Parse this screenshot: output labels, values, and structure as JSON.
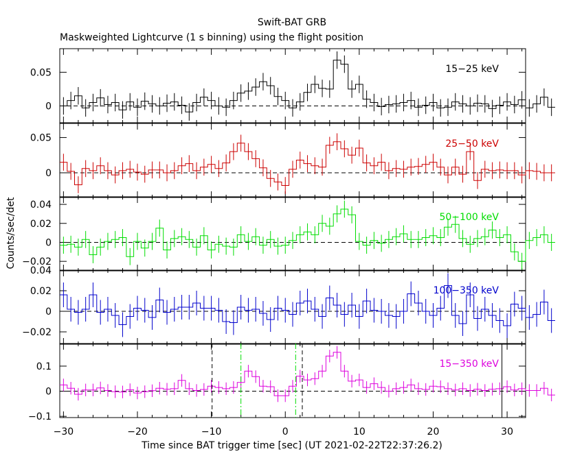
{
  "figure": {
    "title": "Swift-BAT GRB",
    "subtitle": "Maskweighted Lightcurve (1 s binning) using the flight position",
    "ylabel": "Counts/sec/det",
    "xlabel": "Time since BAT trigger time [sec] (UT 2021-02-22T22:37:26.2)",
    "x_ticks": [
      -30,
      -20,
      -10,
      0,
      10,
      20,
      30
    ]
  },
  "chart_data": [
    {
      "type": "line",
      "name": "15−25 keV",
      "color": "#000000",
      "xlim": [
        -30.5,
        32.5
      ],
      "ylim": [
        -0.025,
        0.085
      ],
      "yticks": [
        0,
        0.05
      ],
      "ytick_labels": [
        "0",
        "0.05"
      ],
      "step_start": -30,
      "step_width": 1,
      "values": [
        0.0,
        0.008,
        0.015,
        -0.003,
        0.005,
        0.012,
        0.002,
        0.005,
        -0.006,
        0.006,
        -0.002,
        0.007,
        0.003,
        0.0,
        0.004,
        0.006,
        0.001,
        -0.009,
        0.005,
        0.013,
        0.008,
        0.0,
        -0.002,
        0.008,
        0.019,
        0.022,
        0.028,
        0.036,
        0.03,
        0.014,
        0.008,
        -0.003,
        0.006,
        0.02,
        0.032,
        0.026,
        0.025,
        0.068,
        0.062,
        0.025,
        0.032,
        0.01,
        0.005,
        -0.001,
        0.002,
        0.003,
        0.005,
        0.008,
        -0.002,
        0.001,
        0.005,
        -0.003,
        -0.002,
        0.006,
        0.003,
        0.0,
        0.004,
        0.003,
        -0.004,
        0.001,
        0.006,
        0.002,
        0.009,
        -0.003,
        0.003,
        0.013,
        -0.002
      ],
      "errors": 0.013,
      "annotation": "15−25 keV",
      "vlines": [],
      "hlines": [
        0
      ]
    },
    {
      "type": "line",
      "name": "25−50 keV",
      "color": "#cc0000",
      "xlim": [
        -30.5,
        32.5
      ],
      "ylim": [
        -0.035,
        0.07
      ],
      "yticks": [
        0,
        0.05
      ],
      "ytick_labels": [
        "0",
        "0.05"
      ],
      "step_start": -30,
      "step_width": 1,
      "values": [
        0.015,
        0.002,
        -0.017,
        0.006,
        0.003,
        0.01,
        0.003,
        -0.003,
        0.003,
        0.005,
        0.001,
        -0.002,
        0.004,
        0.004,
        0.0,
        0.003,
        0.01,
        0.013,
        0.003,
        0.008,
        0.012,
        0.006,
        0.014,
        0.03,
        0.042,
        0.03,
        0.02,
        0.007,
        -0.008,
        -0.013,
        -0.018,
        0.005,
        0.018,
        0.013,
        0.01,
        0.008,
        0.039,
        0.044,
        0.034,
        0.025,
        0.035,
        0.014,
        0.01,
        0.015,
        0.003,
        0.006,
        0.005,
        0.008,
        0.009,
        0.012,
        0.015,
        0.008,
        -0.003,
        0.008,
        -0.002,
        0.03,
        -0.011,
        0.005,
        0.003,
        0.004,
        0.003,
        0.003,
        -0.003,
        0.003,
        0.002,
        0.0,
        0.0
      ],
      "errors": 0.012,
      "annotation": "25−50 keV",
      "vlines": [],
      "hlines": [
        0
      ]
    },
    {
      "type": "line",
      "name": "50−100 keV",
      "color": "#00dd00",
      "xlim": [
        -30.5,
        32.5
      ],
      "ylim": [
        -0.03,
        0.048
      ],
      "yticks": [
        -0.02,
        0,
        0.02,
        0.04
      ],
      "ytick_labels": [
        "−0.02",
        "0",
        "0.02",
        "0.04"
      ],
      "step_start": -30,
      "step_width": 1,
      "values": [
        -0.003,
        -0.002,
        -0.005,
        0.003,
        -0.013,
        -0.005,
        0.001,
        0.003,
        0.005,
        -0.015,
        0.001,
        -0.006,
        0.001,
        0.015,
        -0.008,
        0.004,
        0.006,
        0.003,
        -0.005,
        0.007,
        -0.008,
        -0.002,
        -0.004,
        -0.005,
        0.008,
        0.001,
        0.006,
        -0.003,
        0.003,
        -0.004,
        -0.003,
        0.002,
        0.008,
        0.011,
        0.008,
        0.02,
        0.017,
        0.03,
        0.035,
        0.029,
        0.001,
        -0.003,
        0.002,
        -0.001,
        0.003,
        0.006,
        0.009,
        0.003,
        0.003,
        0.005,
        0.007,
        0.005,
        0.016,
        0.019,
        0.004,
        -0.002,
        0.004,
        0.006,
        0.013,
        0.005,
        0.008,
        -0.01,
        -0.02,
        0.002,
        0.005,
        0.008,
        0.0
      ],
      "errors": 0.009,
      "annotation": "50−100 keV",
      "vlines": [],
      "hlines": [
        0
      ]
    },
    {
      "type": "line",
      "name": "100−350 keV",
      "color": "#0000cc",
      "xlim": [
        -30.5,
        32.5
      ],
      "ylim": [
        -0.032,
        0.04
      ],
      "yticks": [
        -0.02,
        0,
        0.02,
        0.04
      ],
      "ytick_labels": [
        "−0.02",
        "0",
        "0.02",
        "0.04"
      ],
      "step_start": -30,
      "step_width": 1,
      "values": [
        0.016,
        0.002,
        -0.001,
        0.002,
        0.016,
        -0.001,
        0.002,
        -0.004,
        -0.013,
        -0.005,
        0.003,
        0.001,
        -0.006,
        0.011,
        -0.001,
        0.002,
        0.004,
        0.004,
        0.008,
        0.003,
        0.003,
        0.001,
        -0.01,
        -0.011,
        0.004,
        0.001,
        0.002,
        -0.002,
        -0.008,
        0.003,
        0.001,
        -0.003,
        0.008,
        0.01,
        0.002,
        -0.005,
        0.013,
        0.006,
        -0.003,
        0.006,
        -0.005,
        0.01,
        0.001,
        0.0,
        -0.004,
        -0.005,
        0.0,
        0.017,
        0.008,
        0.0,
        -0.004,
        0.003,
        0.025,
        -0.004,
        -0.012,
        0.016,
        -0.007,
        0.002,
        -0.004,
        -0.009,
        -0.014,
        0.007,
        0.003,
        -0.006,
        -0.003,
        0.009,
        -0.009
      ],
      "errors": 0.012,
      "annotation": "100−350 keV",
      "vlines": [],
      "hlines": [
        0
      ]
    },
    {
      "type": "line",
      "name": "15−350 keV",
      "color": "#dd00dd",
      "xlim": [
        -30.5,
        32.5
      ],
      "ylim": [
        -0.105,
        0.19
      ],
      "yticks": [
        -0.1,
        0,
        0.1
      ],
      "ytick_labels": [
        "−0.1",
        "0",
        "0.1"
      ],
      "step_start": -30,
      "step_width": 1,
      "values": [
        0.025,
        0.012,
        -0.012,
        0.005,
        0.005,
        0.013,
        0.003,
        -0.002,
        -0.003,
        0.006,
        -0.007,
        -0.002,
        0.002,
        0.012,
        0.008,
        0.01,
        0.043,
        0.01,
        0.003,
        0.007,
        0.02,
        0.015,
        0.01,
        0.015,
        0.035,
        0.08,
        0.058,
        0.02,
        0.018,
        -0.018,
        -0.018,
        0.02,
        0.06,
        0.045,
        0.05,
        0.08,
        0.14,
        0.155,
        0.08,
        0.04,
        0.045,
        0.015,
        0.03,
        0.015,
        0.0,
        0.01,
        0.015,
        0.025,
        0.01,
        0.007,
        0.02,
        0.018,
        0.01,
        0.005,
        0.01,
        0.003,
        0.008,
        0.003,
        0.008,
        0.01,
        0.018,
        0.005,
        0.01,
        0.003,
        0.003,
        0.012,
        -0.015
      ],
      "errors": 0.025,
      "annotation": "15−350 keV",
      "vlines": [
        {
          "x": -9.9,
          "style": "dashed"
        },
        {
          "x": -6.0,
          "style": "dashdot",
          "color": "#00dd00"
        },
        {
          "x": 1.4,
          "style": "dashdot",
          "color": "#00dd00"
        },
        {
          "x": 2.3,
          "style": "dashed"
        },
        {
          "x": 29.3,
          "style": "solid"
        }
      ],
      "hlines": [
        0
      ]
    }
  ]
}
